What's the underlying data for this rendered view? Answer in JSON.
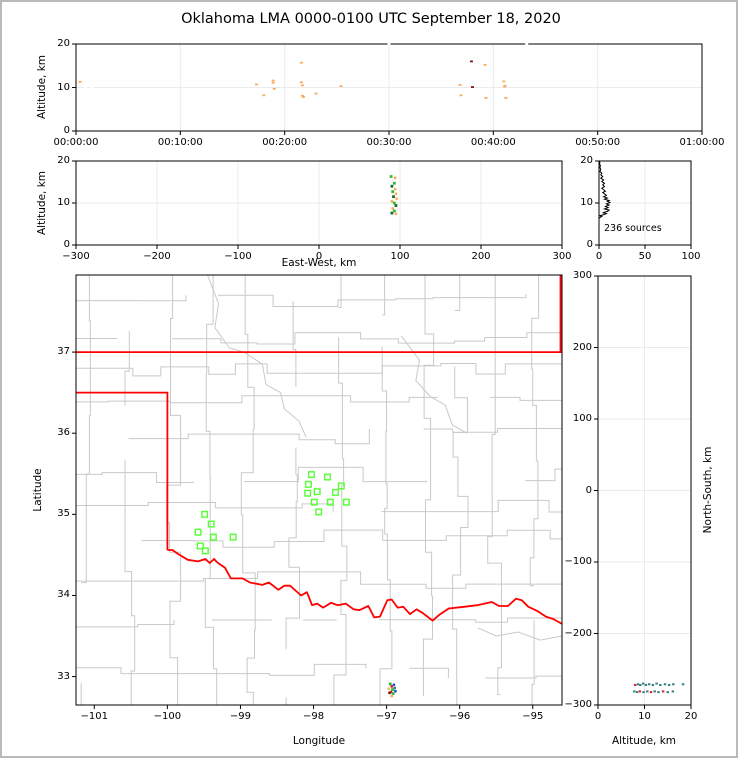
{
  "title": "Oklahoma LMA 0000-0100 UTC September 18, 2020",
  "annotation": "236 sources",
  "labels": {
    "altitude_km": "Altitude, km",
    "east_west_km": "East-West, km",
    "latitude": "Latitude",
    "longitude": "Longitude",
    "north_south_km": "North-South, km"
  },
  "colors": {
    "background": "#ffffff",
    "window_frame": "#b9b9b9",
    "axis": "#000000",
    "grid": "#ebebeb",
    "county": "#c9c9c9",
    "state_border": "#ff0000",
    "flash_square": "#55ff33",
    "hist_line": "#000000",
    "o": "#fbab60",
    "dr": "#7e1416",
    "w": "#ffffff",
    "g": "#33bb33",
    "dg": "#156b2f",
    "t": "#337f7f",
    "r": "#e02020",
    "b": "#2255dd"
  },
  "chart_data": [
    {
      "panel": "time_height",
      "type": "scatter",
      "ylabel": "Altitude, km",
      "xlim_minutes": [
        0,
        60
      ],
      "ylim": [
        0,
        20
      ],
      "xtick_vals": [
        0,
        10,
        20,
        30,
        40,
        50,
        60
      ],
      "xticks": [
        "00:00:00",
        "00:10:00",
        "00:20:00",
        "00:30:00",
        "00:40:00",
        "00:50:00",
        "01:00:00"
      ],
      "ytick_vals": [
        0,
        10,
        20
      ],
      "yticks": [
        "0",
        "10",
        "20"
      ],
      "grid_x": [
        10,
        20,
        30,
        40,
        50
      ],
      "grid_y": [
        10
      ],
      "points": [
        [
          0.4,
          11.3,
          "o"
        ],
        [
          0.9,
          10.1,
          "w"
        ],
        [
          1.6,
          10.0,
          "w"
        ],
        [
          17.3,
          10.7,
          "o"
        ],
        [
          18.0,
          8.2,
          "o"
        ],
        [
          18.9,
          11.6,
          "o"
        ],
        [
          18.9,
          11.1,
          "o"
        ],
        [
          19.0,
          9.7,
          "o"
        ],
        [
          21.6,
          15.7,
          "o"
        ],
        [
          21.6,
          11.2,
          "o"
        ],
        [
          21.7,
          10.5,
          "o"
        ],
        [
          21.7,
          8.1,
          "o"
        ],
        [
          21.8,
          7.8,
          "o"
        ],
        [
          23.0,
          8.6,
          "o"
        ],
        [
          25.4,
          10.3,
          "o"
        ],
        [
          30.0,
          19.95,
          "w"
        ],
        [
          43.2,
          19.95,
          "w"
        ],
        [
          36.8,
          10.6,
          "o"
        ],
        [
          36.9,
          8.2,
          "o"
        ],
        [
          37.9,
          16.0,
          "dr"
        ],
        [
          38.0,
          10.1,
          "dr"
        ],
        [
          39.2,
          15.2,
          "o"
        ],
        [
          39.3,
          7.6,
          "o"
        ],
        [
          41.0,
          11.4,
          "o"
        ],
        [
          41.1,
          10.4,
          "o"
        ],
        [
          41.1,
          10.2,
          "o"
        ],
        [
          41.2,
          7.6,
          "o"
        ]
      ]
    },
    {
      "panel": "ew_height",
      "type": "scatter",
      "xlabel": "East-West, km",
      "ylabel": "Altitude, km",
      "xlim": [
        -300,
        300
      ],
      "ylim": [
        0,
        20
      ],
      "xtick_vals": [
        -300,
        -200,
        -100,
        0,
        100,
        200,
        300
      ],
      "xticks": [
        "−300",
        "−200",
        "−100",
        "0",
        "100",
        "200",
        "300"
      ],
      "ytick_vals": [
        0,
        10,
        20
      ],
      "yticks": [
        "0",
        "10",
        "20"
      ],
      "grid_x": [
        -200,
        -100,
        0,
        100,
        200
      ],
      "grid_y": [
        10
      ],
      "points": [
        [
          89,
          16.3,
          "g"
        ],
        [
          94,
          16.0,
          "o"
        ],
        [
          92,
          15.2,
          "w"
        ],
        [
          93,
          14.7,
          "g"
        ],
        [
          90,
          14.0,
          "dg"
        ],
        [
          94,
          13.3,
          "o"
        ],
        [
          91,
          12.7,
          "g"
        ],
        [
          95,
          12.2,
          "o"
        ],
        [
          92,
          11.5,
          "dg"
        ],
        [
          96,
          11.0,
          "o"
        ],
        [
          90,
          10.4,
          "o"
        ],
        [
          93,
          10.0,
          "g"
        ],
        [
          95,
          9.4,
          "dg"
        ],
        [
          91,
          8.7,
          "o"
        ],
        [
          93,
          8.1,
          "g"
        ],
        [
          90,
          7.6,
          "dg"
        ],
        [
          95,
          7.4,
          "o"
        ]
      ]
    },
    {
      "panel": "altitude_histogram",
      "type": "line",
      "annotation": "236 sources",
      "xlim": [
        0,
        100
      ],
      "ylim": [
        0,
        20
      ],
      "xtick_vals": [
        0,
        50,
        100
      ],
      "xticks": [
        "0",
        "50",
        "100"
      ],
      "ytick_vals": [
        0,
        10,
        20
      ],
      "yticks": [
        "0",
        "10",
        "20"
      ],
      "grid_x": [
        50
      ],
      "grid_y": [
        10
      ],
      "profile_count_alt": [
        [
          0,
          6.4
        ],
        [
          3,
          6.8
        ],
        [
          1,
          7.0
        ],
        [
          5,
          7.2
        ],
        [
          8,
          7.5
        ],
        [
          4,
          7.7
        ],
        [
          9,
          8.0
        ],
        [
          11,
          8.3
        ],
        [
          6,
          8.6
        ],
        [
          10,
          8.9
        ],
        [
          7,
          9.2
        ],
        [
          11,
          9.5
        ],
        [
          8,
          9.8
        ],
        [
          12,
          10.1
        ],
        [
          9,
          10.4
        ],
        [
          11,
          10.6
        ],
        [
          6,
          10.9
        ],
        [
          9,
          11.2
        ],
        [
          5,
          11.5
        ],
        [
          8,
          11.8
        ],
        [
          6,
          12.2
        ],
        [
          4,
          12.5
        ],
        [
          7,
          12.8
        ],
        [
          5,
          13.2
        ],
        [
          3,
          13.5
        ],
        [
          6,
          13.9
        ],
        [
          4,
          14.3
        ],
        [
          6,
          14.7
        ],
        [
          3,
          15.1
        ],
        [
          5,
          15.5
        ],
        [
          2,
          15.9
        ],
        [
          4,
          16.3
        ],
        [
          2,
          16.7
        ],
        [
          3,
          17.1
        ],
        [
          1,
          17.5
        ],
        [
          2,
          18.0
        ],
        [
          1,
          18.4
        ],
        [
          1.5,
          18.9
        ],
        [
          0.5,
          19.3
        ],
        [
          1,
          19.7
        ],
        [
          0,
          20.0
        ]
      ]
    },
    {
      "panel": "plan_map",
      "type": "scatter",
      "xlabel": "Longitude",
      "ylabel": "Latitude",
      "xlim": [
        -101.25,
        -94.6
      ],
      "ylim": [
        32.65,
        37.95
      ],
      "xtick_vals": [
        -101,
        -100,
        -99,
        -98,
        -97,
        -96,
        -95
      ],
      "xticks": [
        "−101",
        "−100",
        "−99",
        "−98",
        "−97",
        "−96",
        "−95"
      ],
      "ytick_vals": [
        33,
        34,
        35,
        36,
        37
      ],
      "yticks": [
        "33",
        "34",
        "35",
        "36",
        "37"
      ],
      "state_border": {
        "north_border": [
          [
            -101.25,
            37
          ],
          [
            -94.6,
            37
          ]
        ],
        "kansas_missouri": [
          [
            -94.62,
            37.95
          ],
          [
            -94.62,
            37.0
          ]
        ],
        "panhandle": [
          [
            -101.25,
            36.5
          ],
          [
            -100,
            36.5
          ],
          [
            -100,
            34.56
          ]
        ],
        "red_river": [
          [
            -100,
            34.56
          ],
          [
            -99.93,
            34.56
          ],
          [
            -99.85,
            34.51
          ],
          [
            -99.72,
            34.44
          ],
          [
            -99.58,
            34.42
          ],
          [
            -99.48,
            34.45
          ],
          [
            -99.42,
            34.4
          ],
          [
            -99.36,
            34.45
          ],
          [
            -99.32,
            34.41
          ],
          [
            -99.21,
            34.34
          ],
          [
            -99.13,
            34.21
          ],
          [
            -98.97,
            34.21
          ],
          [
            -98.87,
            34.16
          ],
          [
            -98.7,
            34.13
          ],
          [
            -98.61,
            34.16
          ],
          [
            -98.48,
            34.07
          ],
          [
            -98.4,
            34.12
          ],
          [
            -98.32,
            34.12
          ],
          [
            -98.17,
            34.0
          ],
          [
            -98.09,
            34.04
          ],
          [
            -98.02,
            33.88
          ],
          [
            -97.95,
            33.9
          ],
          [
            -97.87,
            33.85
          ],
          [
            -97.76,
            33.91
          ],
          [
            -97.67,
            33.88
          ],
          [
            -97.56,
            33.9
          ],
          [
            -97.45,
            33.83
          ],
          [
            -97.37,
            33.82
          ],
          [
            -97.25,
            33.87
          ],
          [
            -97.17,
            33.73
          ],
          [
            -97.09,
            33.74
          ],
          [
            -96.99,
            33.94
          ],
          [
            -96.93,
            33.95
          ],
          [
            -96.85,
            33.85
          ],
          [
            -96.77,
            33.86
          ],
          [
            -96.68,
            33.77
          ],
          [
            -96.59,
            33.83
          ],
          [
            -96.5,
            33.78
          ],
          [
            -96.37,
            33.69
          ],
          [
            -96.28,
            33.76
          ],
          [
            -96.15,
            33.84
          ],
          [
            -95.94,
            33.86
          ],
          [
            -95.76,
            33.88
          ],
          [
            -95.56,
            33.92
          ],
          [
            -95.46,
            33.87
          ],
          [
            -95.34,
            33.87
          ],
          [
            -95.23,
            33.96
          ],
          [
            -95.15,
            33.94
          ],
          [
            -95.06,
            33.86
          ],
          [
            -94.94,
            33.81
          ],
          [
            -94.82,
            33.74
          ],
          [
            -94.72,
            33.71
          ],
          [
            -94.6,
            33.65
          ]
        ]
      },
      "rivers": [
        [
          [
            -99.45,
            37.95
          ],
          [
            -99.3,
            37.6
          ],
          [
            -99.35,
            37.3
          ],
          [
            -99.15,
            37.05
          ],
          [
            -98.95,
            37.0
          ],
          [
            -98.7,
            36.85
          ],
          [
            -98.65,
            36.6
          ],
          [
            -98.45,
            36.5
          ],
          [
            -98.4,
            36.3
          ],
          [
            -98.2,
            36.15
          ],
          [
            -98.1,
            35.95
          ]
        ],
        [
          [
            -96.8,
            37.2
          ],
          [
            -96.55,
            36.9
          ],
          [
            -96.6,
            36.65
          ],
          [
            -96.4,
            36.45
          ],
          [
            -96.2,
            36.35
          ],
          [
            -96.1,
            36.1
          ],
          [
            -95.9,
            36.0
          ]
        ],
        [
          [
            -95.75,
            33.6
          ],
          [
            -95.5,
            33.5
          ],
          [
            -95.2,
            33.55
          ],
          [
            -94.9,
            33.45
          ],
          [
            -94.6,
            33.5
          ]
        ]
      ],
      "county_grid": {
        "seed": 12345,
        "lat_step": 0.44,
        "lon_step": 0.5,
        "jog": 0.22,
        "skip_prob": 0.12
      },
      "flash_squares": [
        [
          -98.03,
          35.49
        ],
        [
          -97.81,
          35.46
        ],
        [
          -98.07,
          35.37
        ],
        [
          -97.62,
          35.35
        ],
        [
          -97.95,
          35.28
        ],
        [
          -98.08,
          35.26
        ],
        [
          -97.7,
          35.27
        ],
        [
          -97.99,
          35.15
        ],
        [
          -97.77,
          35.15
        ],
        [
          -97.55,
          35.15
        ],
        [
          -97.93,
          35.03
        ],
        [
          -99.49,
          35.0
        ],
        [
          -99.4,
          34.88
        ],
        [
          -99.58,
          34.78
        ],
        [
          -99.37,
          34.72
        ],
        [
          -99.1,
          34.72
        ],
        [
          -99.55,
          34.61
        ],
        [
          -99.48,
          34.55
        ]
      ],
      "points": [
        [
          -96.95,
          32.91,
          "g"
        ],
        [
          -96.9,
          32.9,
          "b"
        ],
        [
          -96.93,
          32.88,
          "r"
        ],
        [
          -96.97,
          32.85,
          "o"
        ],
        [
          -96.92,
          32.84,
          "g"
        ],
        [
          -96.89,
          32.86,
          "t"
        ],
        [
          -96.94,
          32.81,
          "r"
        ],
        [
          -96.91,
          32.79,
          "g"
        ],
        [
          -96.96,
          32.8,
          "dr"
        ],
        [
          -96.88,
          32.82,
          "b"
        ],
        [
          -96.93,
          32.76,
          "o"
        ]
      ]
    },
    {
      "panel": "ns_height",
      "type": "scatter",
      "xlabel": "Altitude, km",
      "ylabel": "North-South, km",
      "xlim": [
        0,
        20
      ],
      "ylim": [
        -300,
        300
      ],
      "xtick_vals": [
        0,
        10,
        20
      ],
      "xticks": [
        "0",
        "10",
        "20"
      ],
      "ytick_vals": [
        300,
        200,
        100,
        0,
        -100,
        -200,
        -300
      ],
      "yticks": [
        "300",
        "200",
        "100",
        "0",
        "−100",
        "−200",
        "−300"
      ],
      "grid_x": [
        10
      ],
      "grid_y": [
        -200,
        -100,
        0,
        100,
        200
      ],
      "points": [
        [
          8.0,
          -272,
          "r"
        ],
        [
          8.6,
          -271,
          "t"
        ],
        [
          9.1,
          -272,
          "t"
        ],
        [
          9.7,
          -270,
          "t"
        ],
        [
          10.3,
          -272,
          "t"
        ],
        [
          11.0,
          -271,
          "t"
        ],
        [
          11.8,
          -272,
          "t"
        ],
        [
          12.6,
          -270,
          "t"
        ],
        [
          13.4,
          -272,
          "t"
        ],
        [
          14.4,
          -271,
          "t"
        ],
        [
          15.3,
          -272,
          "t"
        ],
        [
          16.2,
          -271,
          "t"
        ],
        [
          18.3,
          -271,
          "t"
        ],
        [
          7.8,
          -281,
          "t"
        ],
        [
          8.4,
          -282,
          "t"
        ],
        [
          9.0,
          -281,
          "r"
        ],
        [
          9.8,
          -282,
          "t"
        ],
        [
          10.6,
          -281,
          "t"
        ],
        [
          11.4,
          -282,
          "r"
        ],
        [
          12.2,
          -281,
          "t"
        ],
        [
          13.0,
          -282,
          "t"
        ],
        [
          14.0,
          -281,
          "r"
        ],
        [
          15.0,
          -282,
          "t"
        ],
        [
          16.1,
          -281,
          "t"
        ]
      ]
    }
  ]
}
